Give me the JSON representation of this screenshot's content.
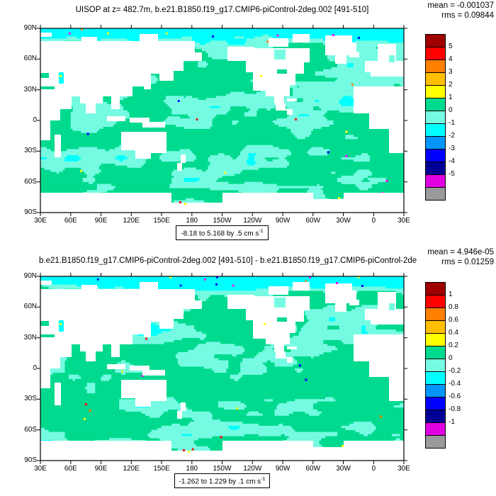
{
  "panels": [
    {
      "title": "UISOP at z= 482.7m, b.e21.B1850.f19_g17.CMIP6-piControl-2deg.002 [491-510]",
      "mean": "mean = -0.001037",
      "rms": "rms = 0.09844",
      "range_text": "-8.18 to 5.168 by .5 cm s",
      "range_sup": "-1",
      "colorbar_labels": [
        "5",
        "4",
        "3",
        "2",
        "1",
        "0",
        "-1",
        "-2",
        "-3",
        "-4",
        "-5"
      ]
    },
    {
      "title": "b.e21.B1850.f19_g17.CMIP6-piControl-2deg.002 [491-510] - b.e21.B1850.f19_g17.CMIP6-piControl-2de",
      "mean": "mean = 4.946e-05",
      "rms": "rms = 0.01259",
      "range_text": "-1.262 to 1.229 by .1 cm s",
      "range_sup": "-1",
      "colorbar_labels": [
        "1",
        "0.8",
        "0.6",
        "0.4",
        "0.2",
        "0",
        "-0.2",
        "-0.4",
        "-0.6",
        "-0.8",
        "-1"
      ]
    }
  ],
  "axes": {
    "lat_ticks": [
      "90N",
      "60N",
      "30N",
      "0",
      "30S",
      "60S",
      "90S"
    ],
    "lon_ticks": [
      "30E",
      "60E",
      "90E",
      "120E",
      "150E",
      "180",
      "150W",
      "120W",
      "90W",
      "60W",
      "30W",
      "0",
      "30E"
    ]
  },
  "palette": {
    "colorbar_colors": [
      "#a00000",
      "#ff0000",
      "#ff8000",
      "#ffbf00",
      "#ffff00",
      "#00da8e",
      "#76fbe3",
      "#00ffff",
      "#0096ff",
      "#0000ff",
      "#000096",
      "#e100e1",
      "#9a9a9a"
    ],
    "ocean_base": "#00da8e",
    "ocean_patch": "#76fbe3",
    "ocean_patch_bright": "#00ffff",
    "land": "#ffffff",
    "speck_colors": [
      "#ffff00",
      "#ff0000",
      "#0000ff",
      "#ff00ff",
      "#ff8000"
    ]
  },
  "chart_data": [
    {
      "type": "heatmap",
      "title": "UISOP at z= 482.7m, b.e21.B1850.f19_g17.CMIP6-piControl-2deg.002 [491-510]",
      "variable": "UISOP",
      "level": "z= 482.7m",
      "case": "b.e21.B1850.f19_g17.CMIP6-piControl-2deg.002",
      "years": "[491-510]",
      "mean": -0.001037,
      "rms": 0.09844,
      "data_min": -8.18,
      "data_max": 5.168,
      "contour_interval": 0.5,
      "units": "cm s-1",
      "projection": "global cylindrical equidistant, left edge 30E, centered near 180",
      "x_ticks": [
        "30E",
        "60E",
        "90E",
        "120E",
        "150E",
        "180",
        "150W",
        "120W",
        "90W",
        "60W",
        "30W",
        "0",
        "30E"
      ],
      "y_ticks": [
        "90N",
        "60N",
        "30N",
        "0",
        "30S",
        "60S",
        "90S"
      ],
      "colorbar_levels": [
        5,
        4,
        3,
        2,
        1,
        0,
        -1,
        -2,
        -3,
        -4,
        -5
      ],
      "colorbar_colors": [
        "#a00000",
        "#ff0000",
        "#ff8000",
        "#ffbf00",
        "#ffff00",
        "#00da8e",
        "#76fbe3",
        "#00ffff",
        "#0096ff",
        "#0000ff",
        "#000096",
        "#e100e1",
        "#9a9a9a"
      ],
      "legend_position": "right",
      "land_mask_color": "#ffffff",
      "field_note": "ocean values almost everywhere within the 0 to +1 (green) and -1 to 0 (aqua) bins; rare extreme speckles near Arctic, Ross Sea and strong-current regions"
    },
    {
      "type": "heatmap",
      "title": "b.e21.B1850.f19_g17.CMIP6-piControl-2deg.002 [491-510] - b.e21.B1850.f19_g17.CMIP6-piControl-2de",
      "mean": 4.946e-05,
      "rms": 0.01259,
      "data_min": -1.262,
      "data_max": 1.229,
      "contour_interval": 0.1,
      "units": "cm s-1",
      "projection": "global cylindrical equidistant, left edge 30E, centered near 180",
      "x_ticks": [
        "30E",
        "60E",
        "90E",
        "120E",
        "150E",
        "180",
        "150W",
        "120W",
        "90W",
        "60W",
        "30W",
        "0",
        "30E"
      ],
      "y_ticks": [
        "90N",
        "60N",
        "30N",
        "0",
        "30S",
        "60S",
        "90S"
      ],
      "colorbar_levels": [
        1,
        0.8,
        0.6,
        0.4,
        0.2,
        0,
        -0.2,
        -0.4,
        -0.6,
        -0.8,
        -1
      ],
      "colorbar_colors": [
        "#a00000",
        "#ff0000",
        "#ff8000",
        "#ffbf00",
        "#ffff00",
        "#00da8e",
        "#76fbe3",
        "#00ffff",
        "#0096ff",
        "#0000ff",
        "#000096",
        "#e100e1",
        "#9a9a9a"
      ],
      "legend_position": "right",
      "land_mask_color": "#ffffff",
      "field_note": "difference field near zero everywhere; green (0 to 0.1) with aqua (-0.1 to 0) patches, rare speckles"
    }
  ]
}
